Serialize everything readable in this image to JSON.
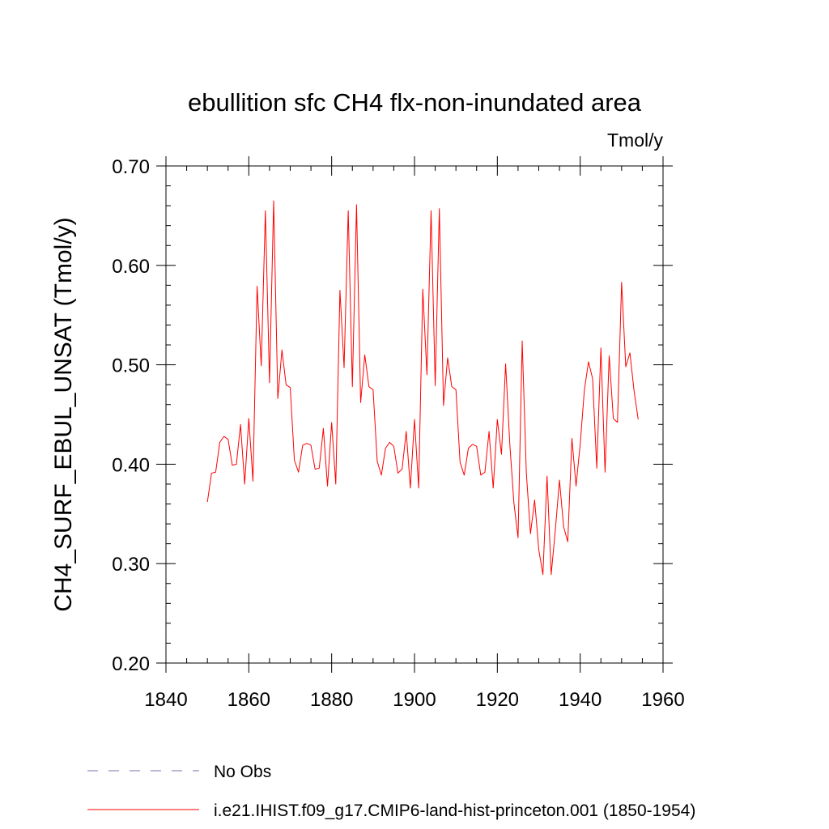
{
  "chart_data": {
    "type": "line",
    "title": "ebullition sfc CH4 flx-non-inundated area",
    "units_label": "Tmol/y",
    "ylabel": "CH4_SURF_EBUL_UNSAT  (Tmol/y)",
    "xlabel": "",
    "xlim": [
      1840,
      1960
    ],
    "ylim": [
      0.2,
      0.7
    ],
    "x_ticks": [
      1840,
      1860,
      1880,
      1900,
      1920,
      1940,
      1960
    ],
    "x_tick_labels": [
      "1840",
      "1860",
      "1880",
      "1900",
      "1920",
      "1940",
      "1960"
    ],
    "y_ticks": [
      0.2,
      0.3,
      0.4,
      0.5,
      0.6,
      0.7
    ],
    "y_tick_labels": [
      "0.20",
      "0.30",
      "0.40",
      "0.50",
      "0.60",
      "0.70"
    ],
    "grid": false,
    "legend_placement": "bottom-left",
    "series": [
      {
        "name": "No Obs",
        "color": "#7b6fa8",
        "style": "dashed",
        "x": [],
        "values": []
      },
      {
        "name": "i.e21.IHIST.f09_g17.CMIP6-land-hist-princeton.001 (1850-1954)",
        "color": "#ff0000",
        "style": "solid",
        "x": [
          1850,
          1851,
          1852,
          1853,
          1854,
          1855,
          1856,
          1857,
          1858,
          1859,
          1860,
          1861,
          1862,
          1863,
          1864,
          1865,
          1866,
          1867,
          1868,
          1869,
          1870,
          1871,
          1872,
          1873,
          1874,
          1875,
          1876,
          1877,
          1878,
          1879,
          1880,
          1881,
          1882,
          1883,
          1884,
          1885,
          1886,
          1887,
          1888,
          1889,
          1890,
          1891,
          1892,
          1893,
          1894,
          1895,
          1896,
          1897,
          1898,
          1899,
          1900,
          1901,
          1902,
          1903,
          1904,
          1905,
          1906,
          1907,
          1908,
          1909,
          1910,
          1911,
          1912,
          1913,
          1914,
          1915,
          1916,
          1917,
          1918,
          1919,
          1920,
          1921,
          1922,
          1923,
          1924,
          1925,
          1926,
          1927,
          1928,
          1929,
          1930,
          1931,
          1932,
          1933,
          1934,
          1935,
          1936,
          1937,
          1938,
          1939,
          1940,
          1941,
          1942,
          1943,
          1944,
          1945,
          1946,
          1947,
          1948,
          1949,
          1950,
          1951,
          1952,
          1953,
          1954
        ],
        "values": [
          0.362,
          0.391,
          0.392,
          0.422,
          0.428,
          0.425,
          0.399,
          0.4,
          0.44,
          0.38,
          0.446,
          0.383,
          0.579,
          0.499,
          0.655,
          0.482,
          0.665,
          0.466,
          0.515,
          0.48,
          0.477,
          0.404,
          0.392,
          0.419,
          0.421,
          0.419,
          0.395,
          0.396,
          0.436,
          0.378,
          0.442,
          0.38,
          0.575,
          0.497,
          0.655,
          0.478,
          0.661,
          0.462,
          0.51,
          0.478,
          0.475,
          0.403,
          0.389,
          0.416,
          0.422,
          0.418,
          0.391,
          0.395,
          0.433,
          0.376,
          0.445,
          0.376,
          0.576,
          0.49,
          0.655,
          0.479,
          0.657,
          0.459,
          0.507,
          0.478,
          0.475,
          0.402,
          0.389,
          0.416,
          0.42,
          0.418,
          0.389,
          0.392,
          0.433,
          0.376,
          0.445,
          0.41,
          0.501,
          0.421,
          0.361,
          0.326,
          0.524,
          0.391,
          0.33,
          0.364,
          0.314,
          0.289,
          0.388,
          0.289,
          0.334,
          0.384,
          0.337,
          0.322,
          0.426,
          0.378,
          0.42,
          0.474,
          0.503,
          0.486,
          0.396,
          0.517,
          0.392,
          0.509,
          0.446,
          0.442,
          0.583,
          0.498,
          0.512,
          0.474,
          0.445
        ]
      }
    ]
  }
}
